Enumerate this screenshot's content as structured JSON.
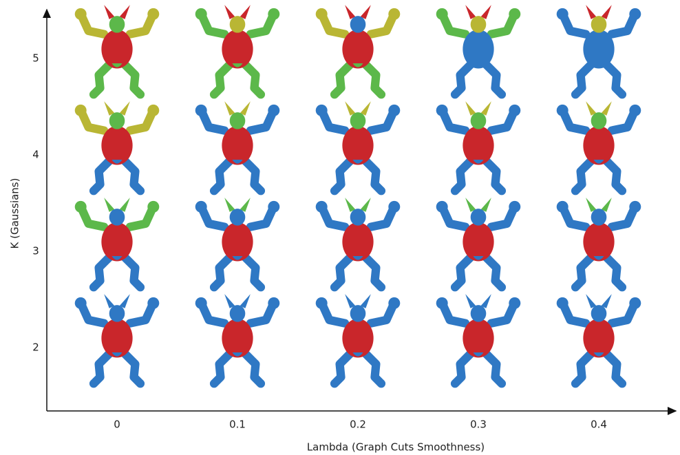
{
  "x_axis": {
    "label": "Lambda (Graph Cuts Smoothness)",
    "ticks": [
      0,
      0.1,
      0.2,
      0.3,
      0.4
    ]
  },
  "y_axis": {
    "label": "K (Gaussians)",
    "ticks": [
      5,
      4,
      3,
      2
    ]
  }
}
